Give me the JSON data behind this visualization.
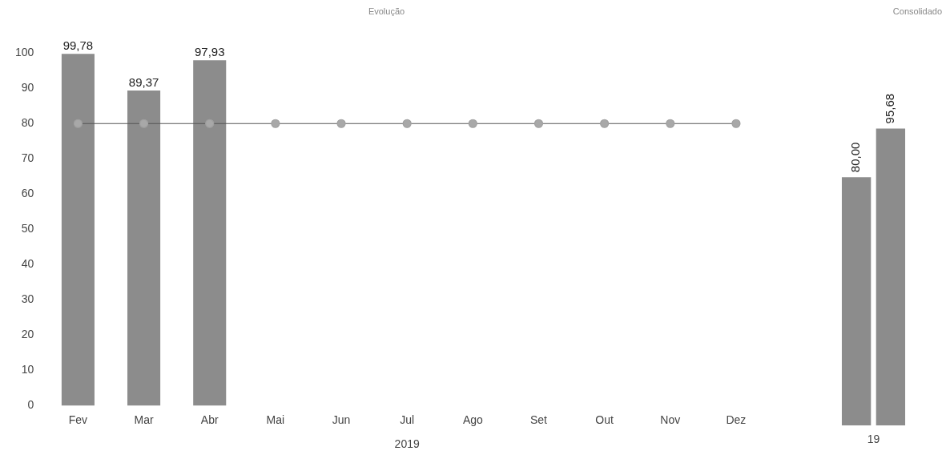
{
  "chart_data": [
    {
      "type": "bar",
      "title": "Evolução",
      "xlabel": "2019",
      "categories": [
        "Fev",
        "Mar",
        "Abr",
        "Mai",
        "Jun",
        "Jul",
        "Ago",
        "Set",
        "Out",
        "Nov",
        "Dez"
      ],
      "series": [
        {
          "color": "#8c8c8c",
          "values": [
            99.78,
            89.37,
            97.93,
            null,
            null,
            null,
            null,
            null,
            null,
            null,
            null
          ],
          "value_labels": [
            "99,78",
            "89,37",
            "97,93",
            null,
            null,
            null,
            null,
            null,
            null,
            null,
            null
          ]
        },
        {
          "type": "line",
          "color": "#555555",
          "values": [
            80,
            80,
            80,
            80,
            80,
            80,
            80,
            80,
            80,
            80,
            80
          ]
        }
      ],
      "ylim": [
        0,
        100
      ],
      "yticks": [
        0,
        10,
        20,
        30,
        40,
        50,
        60,
        70,
        80,
        90,
        100
      ],
      "grid": false,
      "legend": false,
      "marker": "circle",
      "line_style": "solid"
    },
    {
      "type": "bar",
      "title": "Consolidado",
      "categories": [
        "19"
      ],
      "series": [
        {
          "color": "#8c8c8c",
          "values": [
            80.0
          ],
          "value_labels": [
            "80,00"
          ]
        },
        {
          "color": "#8c8c8c",
          "values": [
            95.68
          ],
          "value_labels": [
            "95,68"
          ]
        }
      ],
      "tick_labels": "x",
      "grid": false,
      "legend": false
    }
  ]
}
